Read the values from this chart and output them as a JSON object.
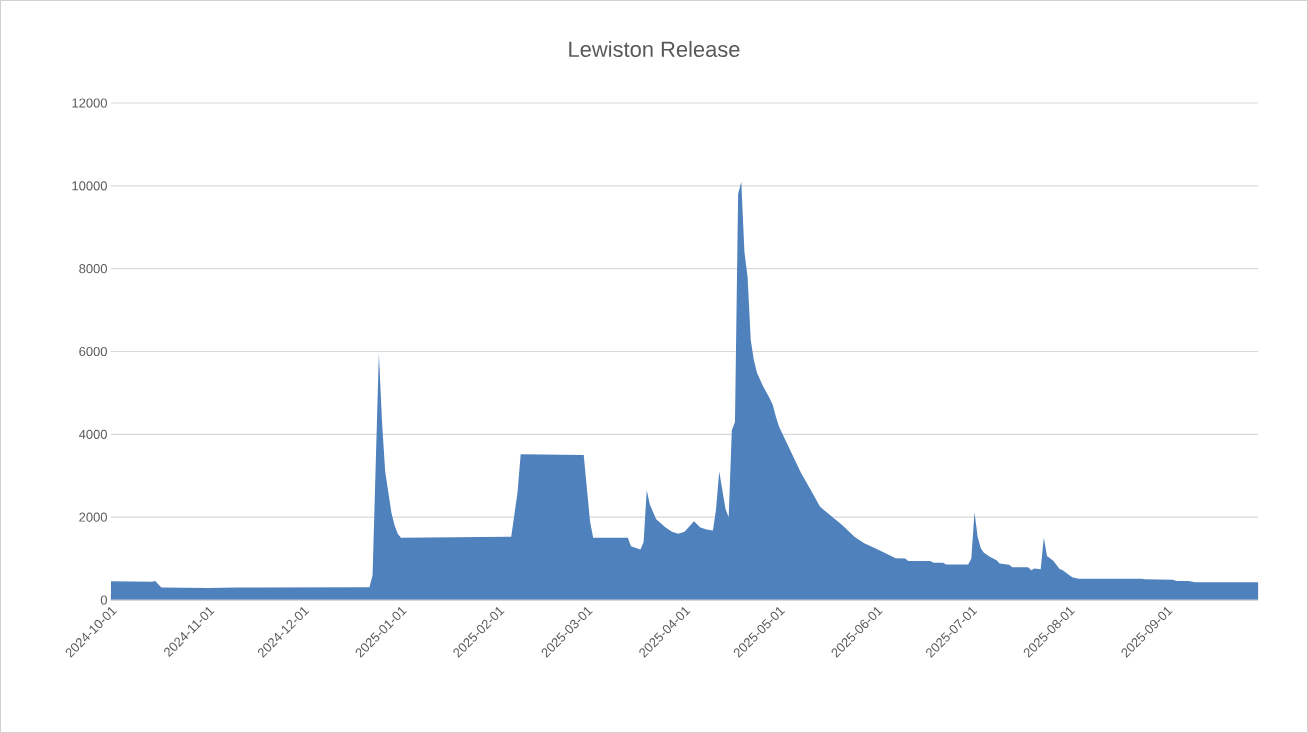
{
  "chart_data": {
    "type": "area",
    "title": "Lewiston Release",
    "color": "#4f81bd",
    "x": [
      "2024-10-01",
      "2024-10-14",
      "2024-10-15",
      "2024-10-17",
      "2024-11-01",
      "2024-11-10",
      "2024-12-22",
      "2024-12-23",
      "2024-12-25",
      "2024-12-26",
      "2024-12-27",
      "2024-12-28",
      "2024-12-29",
      "2024-12-30",
      "2024-12-31",
      "2025-01-01",
      "2025-02-05",
      "2025-02-07",
      "2025-02-08",
      "2025-02-28",
      "2025-03-01",
      "2025-03-02",
      "2025-03-03",
      "2025-03-14",
      "2025-03-15",
      "2025-03-18",
      "2025-03-19",
      "2025-03-20",
      "2025-03-21",
      "2025-03-23",
      "2025-03-26",
      "2025-03-28",
      "2025-03-30",
      "2025-04-01",
      "2025-04-04",
      "2025-04-06",
      "2025-04-08",
      "2025-04-10",
      "2025-04-11",
      "2025-04-12",
      "2025-04-14",
      "2025-04-15",
      "2025-04-16",
      "2025-04-17",
      "2025-04-18",
      "2025-04-19",
      "2025-04-20",
      "2025-04-21",
      "2025-04-22",
      "2025-04-23",
      "2025-04-24",
      "2025-04-26",
      "2025-04-28",
      "2025-04-29",
      "2025-04-30",
      "2025-05-01",
      "2025-05-04",
      "2025-05-06",
      "2025-05-08",
      "2025-05-11",
      "2025-05-14",
      "2025-05-18",
      "2025-05-21",
      "2025-05-25",
      "2025-05-28",
      "2025-06-01",
      "2025-06-07",
      "2025-06-10",
      "2025-06-11",
      "2025-06-18",
      "2025-06-19",
      "2025-06-22",
      "2025-06-23",
      "2025-06-30",
      "2025-07-01",
      "2025-07-02",
      "2025-07-03",
      "2025-07-04",
      "2025-07-05",
      "2025-07-07",
      "2025-07-09",
      "2025-07-10",
      "2025-07-13",
      "2025-07-14",
      "2025-07-19",
      "2025-07-20",
      "2025-07-21",
      "2025-07-23",
      "2025-07-24",
      "2025-07-25",
      "2025-07-27",
      "2025-07-29",
      "2025-07-30",
      "2025-08-02",
      "2025-08-04",
      "2025-08-24",
      "2025-08-25",
      "2025-09-03",
      "2025-09-04",
      "2025-09-08",
      "2025-09-10",
      "2025-09-30"
    ],
    "values": [
      450,
      440,
      460,
      300,
      290,
      300,
      310,
      600,
      5950,
      4300,
      3100,
      2600,
      2100,
      1800,
      1600,
      1500,
      1530,
      2600,
      3520,
      3500,
      2700,
      1900,
      1500,
      1500,
      1300,
      1220,
      1400,
      2650,
      2300,
      1950,
      1750,
      1650,
      1600,
      1650,
      1900,
      1750,
      1700,
      1680,
      2200,
      3100,
      2200,
      2000,
      4100,
      4300,
      9800,
      10100,
      8400,
      7800,
      6280,
      5790,
      5480,
      5150,
      4870,
      4710,
      4420,
      4180,
      3700,
      3380,
      3060,
      2660,
      2250,
      2000,
      1810,
      1520,
      1370,
      1230,
      1010,
      1000,
      940,
      940,
      900,
      900,
      860,
      860,
      1000,
      2120,
      1530,
      1250,
      1140,
      1040,
      960,
      880,
      850,
      790,
      790,
      720,
      760,
      740,
      1500,
      1060,
      950,
      750,
      720,
      550,
      510,
      510,
      500,
      490,
      460,
      460,
      430,
      430
    ],
    "xlim": [
      "2024-10-01",
      "2025-09-30"
    ],
    "xticks": [
      "2024-10-01",
      "2024-11-01",
      "2024-12-01",
      "2025-01-01",
      "2025-02-01",
      "2025-03-01",
      "2025-04-01",
      "2025-05-01",
      "2025-06-01",
      "2025-07-01",
      "2025-08-01",
      "2025-09-01"
    ],
    "ylim": [
      0,
      12000
    ],
    "yticks": [
      0,
      2000,
      4000,
      6000,
      8000,
      10000,
      12000
    ],
    "grid": "y"
  }
}
